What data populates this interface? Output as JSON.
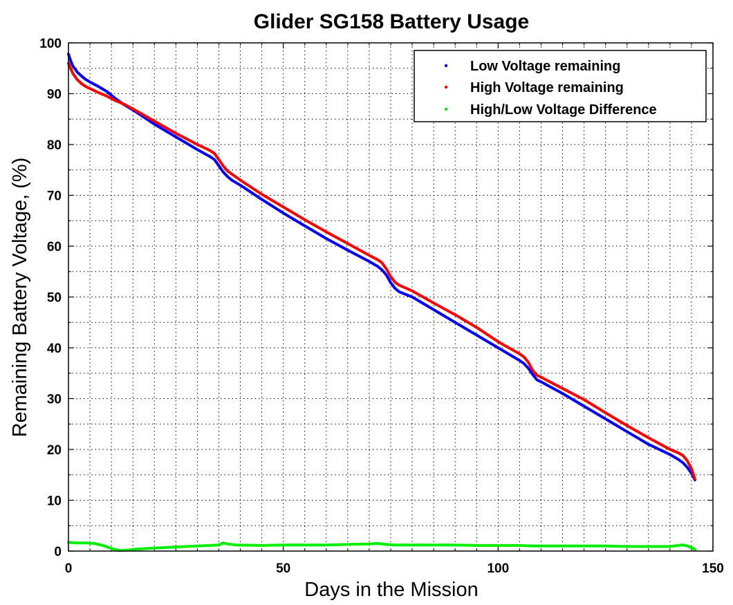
{
  "chart_data": {
    "type": "line",
    "title": "Glider SG158 Battery Usage",
    "xlabel": "Days in the Mission",
    "ylabel": "Remaining Battery Voltage, (%)",
    "xlim": [
      0,
      150
    ],
    "ylim": [
      0,
      100
    ],
    "x_ticks": [
      0,
      50,
      100,
      150
    ],
    "y_ticks": [
      0,
      10,
      20,
      30,
      40,
      50,
      60,
      70,
      80,
      90,
      100
    ],
    "x_minor_ticks": [
      5,
      10,
      15,
      20,
      25,
      30,
      35,
      40,
      45,
      55,
      60,
      65,
      70,
      75,
      80,
      85,
      90,
      95,
      105,
      110,
      115,
      120,
      125,
      130,
      135,
      140,
      145
    ],
    "y_minor_ticks": [
      5,
      15,
      25,
      35,
      45,
      55,
      65,
      75,
      85,
      95
    ],
    "grid": true,
    "legend_position": "top-right",
    "series": [
      {
        "name": "Low Voltage remaining",
        "color": "#0000ff",
        "points": [
          [
            0,
            97.8
          ],
          [
            0.5,
            96.5
          ],
          [
            1,
            95.5
          ],
          [
            2,
            94.3
          ],
          [
            3,
            93.5
          ],
          [
            4,
            92.8
          ],
          [
            5,
            92.3
          ],
          [
            7,
            91.4
          ],
          [
            9,
            90.4
          ],
          [
            11,
            89
          ],
          [
            13,
            87.8
          ],
          [
            15,
            86.8
          ],
          [
            20,
            84
          ],
          [
            25,
            81.5
          ],
          [
            30,
            79
          ],
          [
            33,
            77.6
          ],
          [
            34,
            77
          ],
          [
            35,
            75.8
          ],
          [
            36,
            74.6
          ],
          [
            37,
            73.7
          ],
          [
            38,
            73
          ],
          [
            40,
            72
          ],
          [
            45,
            69.2
          ],
          [
            50,
            66.5
          ],
          [
            55,
            64
          ],
          [
            60,
            61.5
          ],
          [
            65,
            59.2
          ],
          [
            70,
            57
          ],
          [
            72,
            56
          ],
          [
            73,
            55.3
          ],
          [
            74,
            54.3
          ],
          [
            75,
            52.8
          ],
          [
            76,
            51.7
          ],
          [
            77,
            51
          ],
          [
            80,
            50
          ],
          [
            85,
            47.5
          ],
          [
            90,
            45
          ],
          [
            95,
            42.5
          ],
          [
            100,
            40
          ],
          [
            105,
            37.5
          ],
          [
            106,
            36.9
          ],
          [
            107,
            36
          ],
          [
            108,
            34.8
          ],
          [
            109,
            33.7
          ],
          [
            110,
            33.3
          ],
          [
            115,
            31
          ],
          [
            120,
            28.5
          ],
          [
            125,
            26
          ],
          [
            130,
            23.5
          ],
          [
            135,
            21
          ],
          [
            140,
            19
          ],
          [
            142,
            18
          ],
          [
            143,
            17.4
          ],
          [
            144,
            16.5
          ],
          [
            145,
            15.3
          ],
          [
            145.8,
            14
          ]
        ]
      },
      {
        "name": "High Voltage remaining",
        "color": "#ff0000",
        "points": [
          [
            0,
            96
          ],
          [
            0.5,
            95
          ],
          [
            1,
            94
          ],
          [
            2,
            92.8
          ],
          [
            3,
            92
          ],
          [
            4,
            91.4
          ],
          [
            5,
            91
          ],
          [
            7,
            90.2
          ],
          [
            9,
            89.5
          ],
          [
            11,
            88.6
          ],
          [
            13,
            87.9
          ],
          [
            15,
            87
          ],
          [
            20,
            84.6
          ],
          [
            25,
            82.2
          ],
          [
            30,
            80
          ],
          [
            33,
            78.8
          ],
          [
            34,
            78.2
          ],
          [
            35,
            77
          ],
          [
            36,
            75.8
          ],
          [
            37,
            74.8
          ],
          [
            38,
            74.2
          ],
          [
            40,
            73
          ],
          [
            45,
            70.2
          ],
          [
            50,
            67.7
          ],
          [
            55,
            65.2
          ],
          [
            60,
            62.8
          ],
          [
            65,
            60.5
          ],
          [
            70,
            58.2
          ],
          [
            72,
            57.3
          ],
          [
            73,
            56.7
          ],
          [
            74,
            55.5
          ],
          [
            75,
            54
          ],
          [
            76,
            52.9
          ],
          [
            77,
            52.3
          ],
          [
            80,
            51.2
          ],
          [
            85,
            48.8
          ],
          [
            90,
            46.5
          ],
          [
            95,
            44
          ],
          [
            100,
            41.2
          ],
          [
            105,
            38.8
          ],
          [
            106,
            38.2
          ],
          [
            107,
            37.2
          ],
          [
            108,
            35.6
          ],
          [
            109,
            34.6
          ],
          [
            110,
            34.2
          ],
          [
            115,
            32
          ],
          [
            120,
            29.8
          ],
          [
            125,
            27.2
          ],
          [
            130,
            24.7
          ],
          [
            135,
            22.3
          ],
          [
            140,
            20
          ],
          [
            142,
            19.3
          ],
          [
            143,
            18.8
          ],
          [
            144,
            17.8
          ],
          [
            145,
            16.2
          ],
          [
            145.8,
            14.2
          ]
        ]
      },
      {
        "name": "High/Low Voltage Difference",
        "color": "#00ee00",
        "points": [
          [
            0,
            1.7
          ],
          [
            2,
            1.6
          ],
          [
            4,
            1.6
          ],
          [
            6,
            1.5
          ],
          [
            8,
            1.1
          ],
          [
            10,
            0.5
          ],
          [
            12,
            0.1
          ],
          [
            14,
            0.2
          ],
          [
            16,
            0.4
          ],
          [
            20,
            0.6
          ],
          [
            25,
            0.8
          ],
          [
            30,
            1
          ],
          [
            33,
            1.1
          ],
          [
            35,
            1.2
          ],
          [
            36,
            1.6
          ],
          [
            37,
            1.4
          ],
          [
            39,
            1.2
          ],
          [
            45,
            1.1
          ],
          [
            50,
            1.2
          ],
          [
            55,
            1.2
          ],
          [
            60,
            1.2
          ],
          [
            65,
            1.3
          ],
          [
            70,
            1.4
          ],
          [
            72,
            1.5
          ],
          [
            74,
            1.3
          ],
          [
            76,
            1.2
          ],
          [
            80,
            1.2
          ],
          [
            85,
            1.2
          ],
          [
            90,
            1.2
          ],
          [
            95,
            1.1
          ],
          [
            100,
            1.1
          ],
          [
            105,
            1.1
          ],
          [
            108,
            1
          ],
          [
            110,
            1
          ],
          [
            115,
            1
          ],
          [
            120,
            1
          ],
          [
            125,
            1
          ],
          [
            130,
            0.9
          ],
          [
            135,
            0.9
          ],
          [
            140,
            0.9
          ],
          [
            142,
            1.1
          ],
          [
            143,
            1.2
          ],
          [
            144,
            1
          ],
          [
            145,
            0.7
          ],
          [
            145.8,
            0.3
          ]
        ]
      }
    ]
  }
}
